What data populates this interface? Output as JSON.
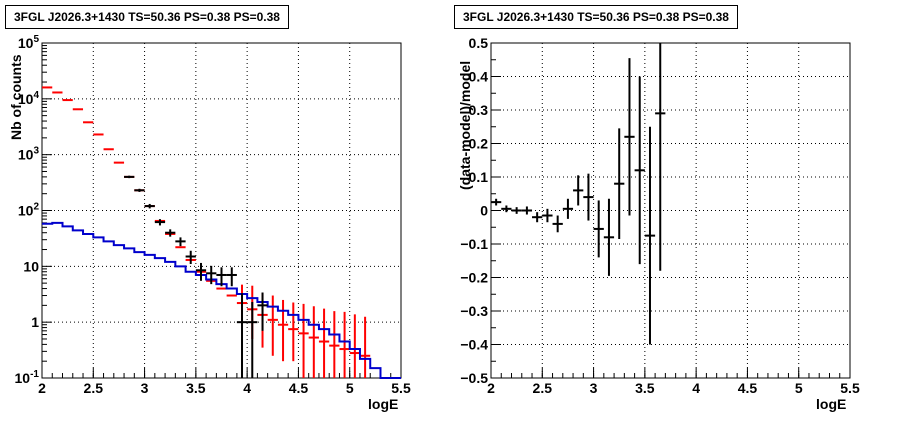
{
  "chart_data": [
    {
      "type": "scatter",
      "title": "3FGL J2026.3+1430 TS=50.36 PS=0.38 PS=0.38",
      "xlabel": "logE",
      "ylabel": "Nb of counts",
      "xlim": [
        2,
        5.5
      ],
      "ylim": [
        0.1,
        100000
      ],
      "yscale": "log",
      "grid": true,
      "x_ticks": [
        "2",
        "2.5",
        "3",
        "3.5",
        "4",
        "4.5",
        "5",
        "5.5"
      ],
      "y_ticks": [
        "10^{-1}",
        "1",
        "10",
        "10^{2}",
        "10^{3}",
        "10^{4}",
        "10^{5}"
      ],
      "series": [
        {
          "color": "#ff0000",
          "style": "model-steps-with-errorbars",
          "bin_width": 0.1,
          "x": [
            2.05,
            2.15,
            2.25,
            2.35,
            2.45,
            2.55,
            2.65,
            2.75,
            2.85,
            2.95,
            3.05,
            3.15,
            3.25,
            3.35,
            3.45,
            3.55,
            3.65,
            3.75,
            3.85,
            3.95,
            4.05,
            4.15,
            4.25,
            4.35,
            4.45,
            4.55,
            4.65,
            4.75,
            4.85,
            4.95,
            5.05,
            5.15
          ],
          "values": [
            16000,
            13000,
            9500,
            6500,
            3800,
            2300,
            1250,
            720,
            400,
            230,
            120,
            65,
            38,
            22,
            13,
            8,
            5.5,
            4,
            3,
            2.2,
            1.7,
            1.35,
            1.1,
            0.9,
            0.75,
            0.63,
            0.53,
            0.45,
            0.38,
            0.33,
            0.28,
            0.25
          ],
          "err_low": [
            0,
            0,
            0,
            0,
            0,
            0,
            0,
            0,
            0,
            0,
            0,
            0,
            0,
            0,
            0,
            0,
            0,
            0,
            0,
            1.2,
            1.2,
            1.0,
            0.85,
            0.7,
            0.55,
            0.6,
            0.5,
            0.45,
            0.4,
            0.35,
            0.3,
            0.25
          ],
          "err_high": [
            0,
            0,
            0,
            0,
            0,
            0,
            0,
            0,
            0,
            0,
            0,
            0,
            0,
            0,
            0,
            0,
            0,
            0,
            0,
            2.5,
            2.8,
            2.0,
            1.9,
            1.6,
            1.5,
            1.5,
            1.4,
            1.3,
            1.2,
            1.2,
            1.1,
            1.0
          ]
        },
        {
          "color": "#0000cc",
          "style": "histogram",
          "bin_edges": [
            2.0,
            2.1,
            2.2,
            2.3,
            2.4,
            2.5,
            2.6,
            2.7,
            2.8,
            2.9,
            3.0,
            3.1,
            3.2,
            3.3,
            3.4,
            3.5,
            3.6,
            3.7,
            3.8,
            3.9,
            4.0,
            4.1,
            4.2,
            4.3,
            4.4,
            4.5,
            4.6,
            4.7,
            4.8,
            4.9,
            5.0,
            5.1,
            5.2,
            5.3,
            5.4,
            5.5
          ],
          "values": [
            58,
            60,
            52,
            44,
            38,
            33,
            28,
            24,
            21,
            18,
            16,
            14,
            12,
            10,
            8,
            7,
            5.8,
            4.8,
            4.0,
            3.2,
            2.7,
            2.3,
            1.9,
            1.6,
            1.35,
            1.1,
            0.9,
            0.75,
            0.6,
            0.45,
            0.33,
            0.22,
            0.15,
            0.1,
            0.1
          ]
        },
        {
          "color": "#000000",
          "style": "data-points-with-errorbars",
          "bin_width": 0.1,
          "x": [
            2.85,
            2.95,
            3.05,
            3.15,
            3.25,
            3.35,
            3.45,
            3.55,
            3.65,
            3.75,
            3.85,
            3.95,
            4.05,
            4.15
          ],
          "values": [
            400,
            230,
            120,
            62,
            40,
            28,
            15,
            8.5,
            7.5,
            7,
            7,
            1,
            1,
            2
          ],
          "err_low": [
            20,
            15,
            11,
            8,
            6,
            5,
            4,
            3,
            2.7,
            2.6,
            2.6,
            0.9,
            0.9,
            1.3
          ],
          "err_high": [
            20,
            15,
            11,
            8,
            6,
            5,
            4,
            3,
            2.7,
            2.6,
            2.6,
            2.3,
            1.3,
            1.4
          ]
        }
      ]
    },
    {
      "type": "scatter",
      "title": "3FGL J2026.3+1430 TS=50.36 PS=0.38 PS=0.38",
      "xlabel": "logE",
      "ylabel": "(data-model)/model",
      "xlim": [
        2,
        5.5
      ],
      "ylim": [
        -0.5,
        0.5
      ],
      "grid": true,
      "x_ticks": [
        "2",
        "2.5",
        "3",
        "3.5",
        "4",
        "4.5",
        "5",
        "5.5"
      ],
      "y_ticks": [
        "−0.5",
        "−0.4",
        "−0.3",
        "−0.2",
        "−0.1",
        "0",
        "0.1",
        "0.2",
        "0.3",
        "0.4",
        "0.5"
      ],
      "series": [
        {
          "color": "#000000",
          "style": "data-points-with-errorbars",
          "bin_width": 0.1,
          "x": [
            2.05,
            2.15,
            2.25,
            2.35,
            2.45,
            2.55,
            2.65,
            2.75,
            2.85,
            2.95,
            3.05,
            3.15,
            3.25,
            3.35,
            3.45,
            3.55,
            3.65
          ],
          "values": [
            0.025,
            0.005,
            0.0,
            0.0,
            -0.02,
            -0.015,
            -0.04,
            0.005,
            0.06,
            0.04,
            -0.055,
            -0.08,
            0.08,
            0.22,
            0.12,
            -0.075,
            0.29
          ],
          "err_low": [
            0.01,
            0.01,
            0.01,
            0.012,
            0.015,
            0.02,
            0.025,
            0.03,
            0.045,
            0.07,
            0.085,
            0.115,
            0.165,
            0.235,
            0.28,
            0.325,
            0.47
          ],
          "err_high": [
            0.01,
            0.01,
            0.01,
            0.012,
            0.015,
            0.02,
            0.025,
            0.03,
            0.045,
            0.07,
            0.085,
            0.115,
            0.165,
            0.235,
            0.28,
            0.325,
            0.47
          ]
        }
      ]
    }
  ]
}
